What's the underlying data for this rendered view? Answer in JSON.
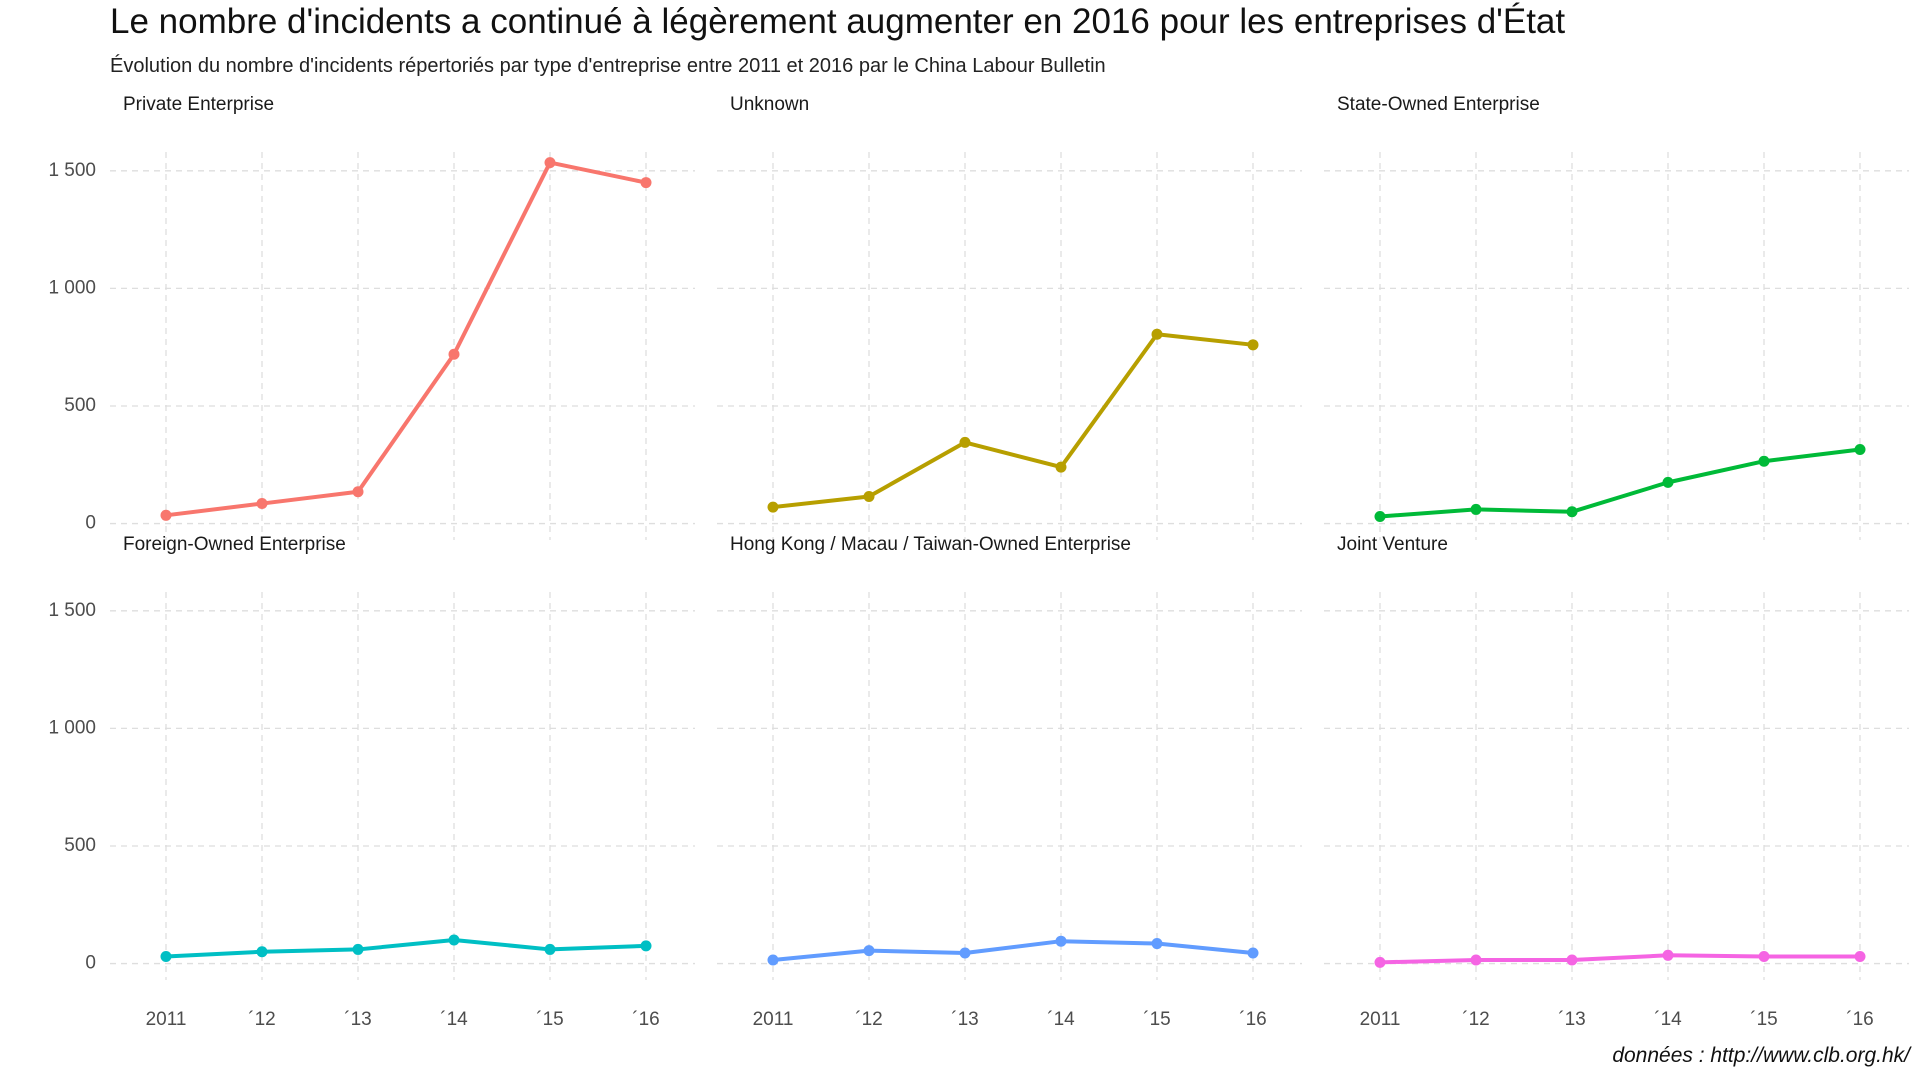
{
  "title": "Le nombre d'incidents a continué à légèrement augmenter en 2016 pour les entreprises d'État",
  "subtitle": "Évolution du nombre d'incidents répertoriés par type d'entreprise entre 2011 et 2016 par le China Labour Bulletin",
  "caption": "données : http://www.clb.org.hk/",
  "chart_data": {
    "type": "line",
    "layout": "facets 2 rows x 3 columns, shared axes",
    "x": [
      2011,
      2012,
      2013,
      2014,
      2015,
      2016
    ],
    "x_tick_labels": [
      "2011",
      "´12",
      "´13",
      "´14",
      "´15",
      "´16"
    ],
    "y_ticks": [
      0,
      500,
      1000,
      1500
    ],
    "y_tick_labels": [
      "0",
      "500",
      "1 000",
      "1 500"
    ],
    "ylim": [
      -70,
      1580
    ],
    "grid": "dashed major gridlines",
    "legend": "none",
    "series": [
      {
        "name": "Private Enterprise",
        "color": "#F8766D",
        "values": [
          35,
          85,
          135,
          720,
          1535,
          1450
        ]
      },
      {
        "name": "Unknown",
        "color": "#B79F00",
        "values": [
          70,
          115,
          345,
          240,
          805,
          760
        ]
      },
      {
        "name": "State-Owned Enterprise",
        "color": "#00BA38",
        "values": [
          30,
          60,
          50,
          175,
          265,
          315
        ]
      },
      {
        "name": "Foreign-Owned Enterprise",
        "color": "#00BFC4",
        "values": [
          30,
          50,
          60,
          100,
          60,
          75
        ]
      },
      {
        "name": "Hong Kong / Macau / Taiwan-Owned Enterprise",
        "color": "#619CFF",
        "values": [
          15,
          55,
          45,
          95,
          85,
          45
        ]
      },
      {
        "name": "Joint Venture",
        "color": "#F564E3",
        "values": [
          5,
          15,
          15,
          35,
          30,
          30
        ]
      }
    ]
  }
}
